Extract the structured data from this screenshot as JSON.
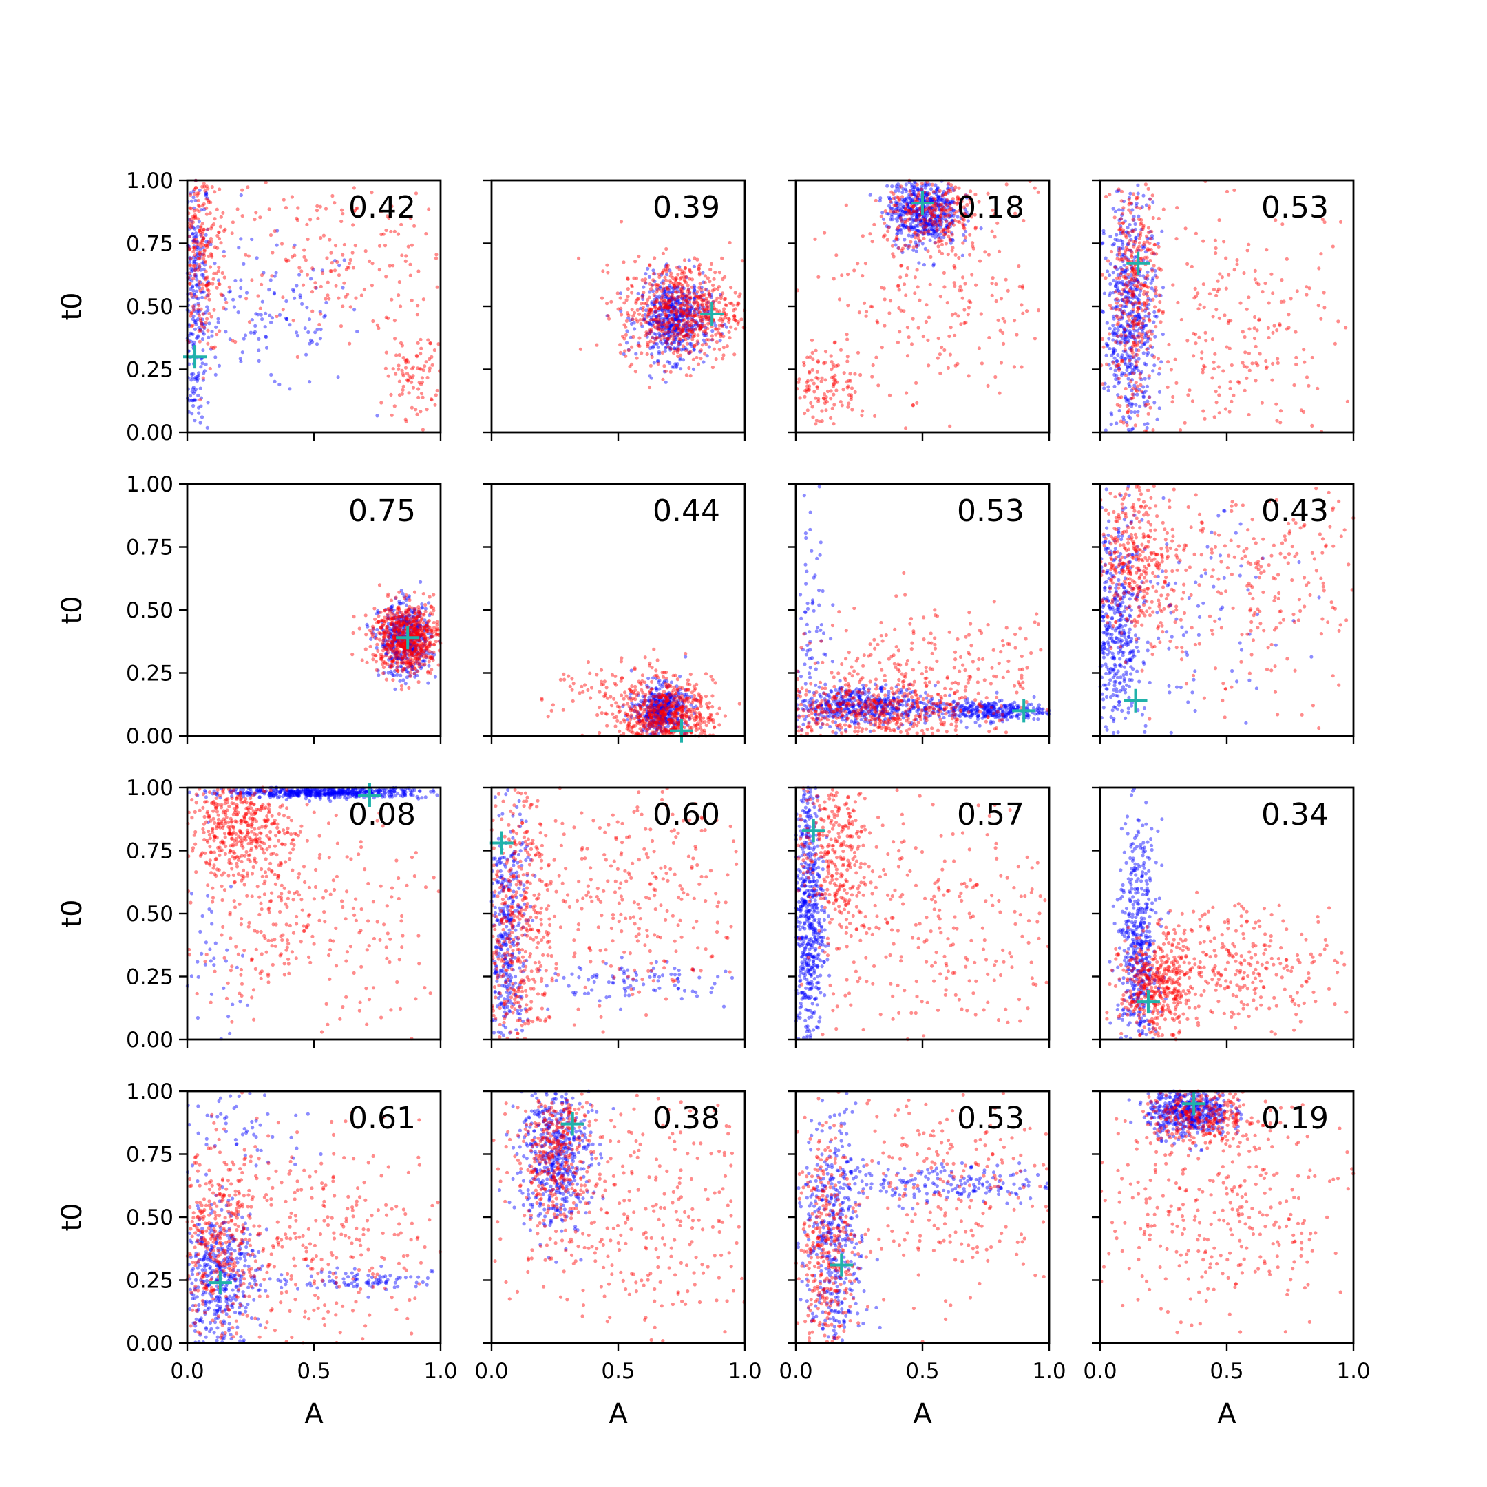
{
  "figure": {
    "colors": {
      "red": "#ff0000",
      "blue": "#0000ff",
      "truth": "#20b2aa",
      "axis": "#000000"
    },
    "xticks": [
      "0.0",
      "0.5",
      "1.0"
    ],
    "yticks": [
      "0.00",
      "0.25",
      "0.50",
      "0.75",
      "1.00"
    ]
  },
  "chart_data": [
    {
      "type": "scatter",
      "row": 0,
      "col": 0,
      "annotation": "0.42",
      "xlabel": "",
      "ylabel": "t0",
      "xlim": [
        0,
        1
      ],
      "ylim": [
        0,
        1
      ],
      "marker": {
        "x": 0.03,
        "y": 0.3
      },
      "series": [
        {
          "color": "blue",
          "clusters": [
            {
              "x": 0.03,
              "y": 0.5,
              "sx": 0.03,
              "sy": 0.3,
              "n": 300
            },
            {
              "x": 0.3,
              "y": 0.45,
              "sx": 0.2,
              "sy": 0.15,
              "n": 130
            }
          ]
        },
        {
          "color": "red",
          "clusters": [
            {
              "x": 0.06,
              "y": 0.7,
              "sx": 0.05,
              "sy": 0.2,
              "n": 250
            },
            {
              "x": 0.55,
              "y": 0.7,
              "sx": 0.25,
              "sy": 0.18,
              "n": 200
            },
            {
              "x": 0.9,
              "y": 0.22,
              "sx": 0.06,
              "sy": 0.08,
              "n": 90
            }
          ]
        }
      ]
    },
    {
      "type": "scatter",
      "row": 0,
      "col": 1,
      "annotation": "0.39",
      "xlabel": "",
      "ylabel": "",
      "xlim": [
        0,
        1
      ],
      "ylim": [
        0,
        1
      ],
      "marker": {
        "x": 0.87,
        "y": 0.47
      },
      "series": [
        {
          "color": "blue",
          "clusters": [
            {
              "x": 0.72,
              "y": 0.45,
              "sx": 0.07,
              "sy": 0.08,
              "n": 550
            }
          ]
        },
        {
          "color": "red",
          "clusters": [
            {
              "x": 0.75,
              "y": 0.48,
              "sx": 0.12,
              "sy": 0.1,
              "n": 650
            }
          ]
        }
      ]
    },
    {
      "type": "scatter",
      "row": 0,
      "col": 2,
      "annotation": "0.18",
      "xlabel": "",
      "ylabel": "",
      "xlim": [
        0,
        1
      ],
      "ylim": [
        0,
        1
      ],
      "marker": {
        "x": 0.5,
        "y": 0.91
      },
      "series": [
        {
          "color": "blue",
          "clusters": [
            {
              "x": 0.5,
              "y": 0.88,
              "sx": 0.07,
              "sy": 0.07,
              "n": 550
            }
          ]
        },
        {
          "color": "red",
          "clusters": [
            {
              "x": 0.55,
              "y": 0.85,
              "sx": 0.1,
              "sy": 0.08,
              "n": 250
            },
            {
              "x": 0.55,
              "y": 0.55,
              "sx": 0.3,
              "sy": 0.25,
              "n": 250
            },
            {
              "x": 0.12,
              "y": 0.18,
              "sx": 0.08,
              "sy": 0.08,
              "n": 120
            }
          ]
        }
      ]
    },
    {
      "type": "scatter",
      "row": 0,
      "col": 3,
      "annotation": "0.53",
      "xlabel": "",
      "ylabel": "",
      "xlim": [
        0,
        1
      ],
      "ylim": [
        0,
        1
      ],
      "marker": {
        "x": 0.15,
        "y": 0.67
      },
      "series": [
        {
          "color": "blue",
          "clusters": [
            {
              "x": 0.12,
              "y": 0.45,
              "sx": 0.05,
              "sy": 0.25,
              "n": 550
            }
          ]
        },
        {
          "color": "red",
          "clusters": [
            {
              "x": 0.13,
              "y": 0.55,
              "sx": 0.05,
              "sy": 0.25,
              "n": 350
            },
            {
              "x": 0.55,
              "y": 0.4,
              "sx": 0.25,
              "sy": 0.25,
              "n": 250
            }
          ]
        }
      ]
    },
    {
      "type": "scatter",
      "row": 1,
      "col": 0,
      "annotation": "0.75",
      "xlabel": "",
      "ylabel": "t0",
      "xlim": [
        0,
        1
      ],
      "ylim": [
        0,
        1
      ],
      "marker": {
        "x": 0.87,
        "y": 0.39
      },
      "series": [
        {
          "color": "blue",
          "clusters": [
            {
              "x": 0.86,
              "y": 0.38,
              "sx": 0.05,
              "sy": 0.07,
              "n": 500
            }
          ]
        },
        {
          "color": "red",
          "clusters": [
            {
              "x": 0.87,
              "y": 0.39,
              "sx": 0.07,
              "sy": 0.07,
              "n": 650
            }
          ]
        }
      ]
    },
    {
      "type": "scatter",
      "row": 1,
      "col": 1,
      "annotation": "0.44",
      "xlabel": "",
      "ylabel": "",
      "xlim": [
        0,
        1
      ],
      "ylim": [
        0,
        1
      ],
      "marker": {
        "x": 0.75,
        "y": 0.02
      },
      "series": [
        {
          "color": "blue",
          "clusters": [
            {
              "x": 0.67,
              "y": 0.1,
              "sx": 0.05,
              "sy": 0.05,
              "n": 450
            }
          ]
        },
        {
          "color": "red",
          "clusters": [
            {
              "x": 0.7,
              "y": 0.08,
              "sx": 0.09,
              "sy": 0.06,
              "n": 500
            },
            {
              "x": 0.55,
              "y": 0.15,
              "sx": 0.15,
              "sy": 0.08,
              "n": 150
            }
          ]
        }
      ]
    },
    {
      "type": "scatter",
      "row": 1,
      "col": 2,
      "annotation": "0.53",
      "xlabel": "",
      "ylabel": "",
      "xlim": [
        0,
        1
      ],
      "ylim": [
        0,
        1
      ],
      "marker": {
        "x": 0.9,
        "y": 0.1
      },
      "series": [
        {
          "color": "blue",
          "clusters": [
            {
              "x": 0.25,
              "y": 0.12,
              "sx": 0.15,
              "sy": 0.04,
              "n": 500
            },
            {
              "x": 0.75,
              "y": 0.1,
              "sx": 0.12,
              "sy": 0.02,
              "n": 300
            },
            {
              "x": 0.05,
              "y": 0.5,
              "sx": 0.04,
              "sy": 0.25,
              "n": 80
            }
          ]
        },
        {
          "color": "red",
          "clusters": [
            {
              "x": 0.3,
              "y": 0.1,
              "sx": 0.2,
              "sy": 0.06,
              "n": 450
            },
            {
              "x": 0.55,
              "y": 0.25,
              "sx": 0.3,
              "sy": 0.12,
              "n": 250
            }
          ]
        }
      ]
    },
    {
      "type": "scatter",
      "row": 1,
      "col": 3,
      "annotation": "0.43",
      "xlabel": "",
      "ylabel": "",
      "xlim": [
        0,
        1
      ],
      "ylim": [
        0,
        1
      ],
      "marker": {
        "x": 0.14,
        "y": 0.14
      },
      "series": [
        {
          "color": "blue",
          "clusters": [
            {
              "x": 0.06,
              "y": 0.4,
              "sx": 0.05,
              "sy": 0.25,
              "n": 450
            },
            {
              "x": 0.35,
              "y": 0.45,
              "sx": 0.2,
              "sy": 0.2,
              "n": 100
            }
          ]
        },
        {
          "color": "red",
          "clusters": [
            {
              "x": 0.15,
              "y": 0.7,
              "sx": 0.08,
              "sy": 0.15,
              "n": 350
            },
            {
              "x": 0.6,
              "y": 0.6,
              "sx": 0.25,
              "sy": 0.22,
              "n": 250
            }
          ]
        }
      ]
    },
    {
      "type": "scatter",
      "row": 2,
      "col": 0,
      "annotation": "0.08",
      "xlabel": "",
      "ylabel": "t0",
      "xlim": [
        0,
        1
      ],
      "ylim": [
        0,
        1
      ],
      "marker": {
        "x": 0.72,
        "y": 0.97
      },
      "series": [
        {
          "color": "blue",
          "clusters": [
            {
              "x": 0.55,
              "y": 0.98,
              "sx": 0.2,
              "sy": 0.01,
              "n": 500
            },
            {
              "x": 0.1,
              "y": 0.3,
              "sx": 0.06,
              "sy": 0.2,
              "n": 40
            }
          ]
        },
        {
          "color": "red",
          "clusters": [
            {
              "x": 0.2,
              "y": 0.85,
              "sx": 0.1,
              "sy": 0.1,
              "n": 400
            },
            {
              "x": 0.3,
              "y": 0.55,
              "sx": 0.15,
              "sy": 0.2,
              "n": 200
            },
            {
              "x": 0.6,
              "y": 0.5,
              "sx": 0.25,
              "sy": 0.25,
              "n": 150
            }
          ]
        }
      ]
    },
    {
      "type": "scatter",
      "row": 2,
      "col": 1,
      "annotation": "0.60",
      "xlabel": "",
      "ylabel": "",
      "xlim": [
        0,
        1
      ],
      "ylim": [
        0,
        1
      ],
      "marker": {
        "x": 0.04,
        "y": 0.78
      },
      "series": [
        {
          "color": "blue",
          "clusters": [
            {
              "x": 0.06,
              "y": 0.4,
              "sx": 0.04,
              "sy": 0.28,
              "n": 400
            },
            {
              "x": 0.55,
              "y": 0.23,
              "sx": 0.25,
              "sy": 0.04,
              "n": 100
            }
          ]
        },
        {
          "color": "red",
          "clusters": [
            {
              "x": 0.1,
              "y": 0.45,
              "sx": 0.07,
              "sy": 0.28,
              "n": 450
            },
            {
              "x": 0.55,
              "y": 0.55,
              "sx": 0.25,
              "sy": 0.25,
              "n": 300
            }
          ]
        }
      ]
    },
    {
      "type": "scatter",
      "row": 2,
      "col": 2,
      "annotation": "0.57",
      "xlabel": "",
      "ylabel": "",
      "xlim": [
        0,
        1
      ],
      "ylim": [
        0,
        1
      ],
      "marker": {
        "x": 0.07,
        "y": 0.83
      },
      "series": [
        {
          "color": "blue",
          "clusters": [
            {
              "x": 0.05,
              "y": 0.5,
              "sx": 0.03,
              "sy": 0.3,
              "n": 600
            }
          ]
        },
        {
          "color": "red",
          "clusters": [
            {
              "x": 0.15,
              "y": 0.75,
              "sx": 0.07,
              "sy": 0.18,
              "n": 300
            },
            {
              "x": 0.55,
              "y": 0.45,
              "sx": 0.28,
              "sy": 0.25,
              "n": 300
            }
          ]
        }
      ]
    },
    {
      "type": "scatter",
      "row": 2,
      "col": 3,
      "annotation": "0.34",
      "xlabel": "",
      "ylabel": "",
      "xlim": [
        0,
        1
      ],
      "ylim": [
        0,
        1
      ],
      "marker": {
        "x": 0.19,
        "y": 0.15
      },
      "series": [
        {
          "color": "blue",
          "clusters": [
            {
              "x": 0.15,
              "y": 0.35,
              "sx": 0.04,
              "sy": 0.25,
              "n": 500
            }
          ]
        },
        {
          "color": "red",
          "clusters": [
            {
              "x": 0.22,
              "y": 0.2,
              "sx": 0.07,
              "sy": 0.1,
              "n": 400
            },
            {
              "x": 0.55,
              "y": 0.3,
              "sx": 0.2,
              "sy": 0.12,
              "n": 300
            }
          ]
        }
      ]
    },
    {
      "type": "scatter",
      "row": 3,
      "col": 0,
      "annotation": "0.61",
      "xlabel": "A",
      "ylabel": "t0",
      "xlim": [
        0,
        1
      ],
      "ylim": [
        0,
        1
      ],
      "marker": {
        "x": 0.13,
        "y": 0.24
      },
      "series": [
        {
          "color": "blue",
          "clusters": [
            {
              "x": 0.12,
              "y": 0.25,
              "sx": 0.08,
              "sy": 0.15,
              "n": 450
            },
            {
              "x": 0.7,
              "y": 0.25,
              "sx": 0.2,
              "sy": 0.02,
              "n": 100
            },
            {
              "x": 0.2,
              "y": 0.85,
              "sx": 0.15,
              "sy": 0.1,
              "n": 60
            }
          ]
        },
        {
          "color": "red",
          "clusters": [
            {
              "x": 0.12,
              "y": 0.4,
              "sx": 0.08,
              "sy": 0.18,
              "n": 350
            },
            {
              "x": 0.55,
              "y": 0.4,
              "sx": 0.25,
              "sy": 0.2,
              "n": 300
            }
          ]
        }
      ]
    },
    {
      "type": "scatter",
      "row": 3,
      "col": 1,
      "annotation": "0.38",
      "xlabel": "A",
      "ylabel": "",
      "xlim": [
        0,
        1
      ],
      "ylim": [
        0,
        1
      ],
      "marker": {
        "x": 0.32,
        "y": 0.87
      },
      "series": [
        {
          "color": "blue",
          "clusters": [
            {
              "x": 0.25,
              "y": 0.75,
              "sx": 0.07,
              "sy": 0.15,
              "n": 500
            }
          ]
        },
        {
          "color": "red",
          "clusters": [
            {
              "x": 0.25,
              "y": 0.75,
              "sx": 0.08,
              "sy": 0.15,
              "n": 350
            },
            {
              "x": 0.6,
              "y": 0.5,
              "sx": 0.25,
              "sy": 0.25,
              "n": 300
            }
          ]
        }
      ]
    },
    {
      "type": "scatter",
      "row": 3,
      "col": 2,
      "annotation": "0.53",
      "xlabel": "A",
      "ylabel": "",
      "xlim": [
        0,
        1
      ],
      "ylim": [
        0,
        1
      ],
      "marker": {
        "x": 0.18,
        "y": 0.31
      },
      "series": [
        {
          "color": "blue",
          "clusters": [
            {
              "x": 0.15,
              "y": 0.4,
              "sx": 0.06,
              "sy": 0.25,
              "n": 400
            },
            {
              "x": 0.55,
              "y": 0.63,
              "sx": 0.25,
              "sy": 0.04,
              "n": 200
            }
          ]
        },
        {
          "color": "red",
          "clusters": [
            {
              "x": 0.12,
              "y": 0.35,
              "sx": 0.06,
              "sy": 0.25,
              "n": 350
            },
            {
              "x": 0.55,
              "y": 0.6,
              "sx": 0.25,
              "sy": 0.2,
              "n": 250
            }
          ]
        }
      ]
    },
    {
      "type": "scatter",
      "row": 3,
      "col": 3,
      "annotation": "0.19",
      "xlabel": "A",
      "ylabel": "",
      "xlim": [
        0,
        1
      ],
      "ylim": [
        0,
        1
      ],
      "marker": {
        "x": 0.37,
        "y": 0.95
      },
      "series": [
        {
          "color": "blue",
          "clusters": [
            {
              "x": 0.35,
              "y": 0.92,
              "sx": 0.08,
              "sy": 0.05,
              "n": 500
            }
          ]
        },
        {
          "color": "red",
          "clusters": [
            {
              "x": 0.4,
              "y": 0.9,
              "sx": 0.12,
              "sy": 0.06,
              "n": 300
            },
            {
              "x": 0.45,
              "y": 0.5,
              "sx": 0.28,
              "sy": 0.25,
              "n": 350
            }
          ]
        }
      ]
    }
  ]
}
